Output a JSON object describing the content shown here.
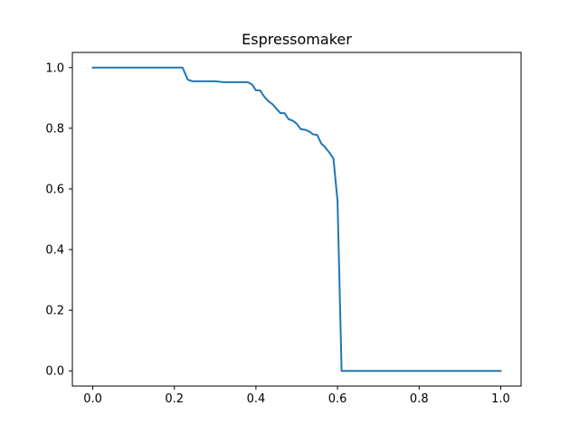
{
  "chart_data": {
    "type": "line",
    "title": "Espressomaker",
    "xlabel": "",
    "ylabel": "",
    "xlim": [
      -0.05,
      1.05
    ],
    "ylim": [
      -0.05,
      1.05
    ],
    "x_ticks": [
      "0.0",
      "0.2",
      "0.4",
      "0.6",
      "0.8",
      "1.0"
    ],
    "y_ticks": [
      "0.0",
      "0.2",
      "0.4",
      "0.6",
      "0.8",
      "1.0"
    ],
    "grid": false,
    "legend": "none",
    "series": [
      {
        "color": "#1f77b4",
        "x": [
          0.0,
          0.1,
          0.2,
          0.22,
          0.233,
          0.245,
          0.3,
          0.32,
          0.38,
          0.39,
          0.4,
          0.41,
          0.42,
          0.43,
          0.44,
          0.45,
          0.46,
          0.47,
          0.48,
          0.49,
          0.5,
          0.51,
          0.52,
          0.53,
          0.54,
          0.55,
          0.56,
          0.57,
          0.58,
          0.59,
          0.6,
          0.61,
          0.62,
          0.63,
          0.7,
          0.8,
          0.9,
          1.0
        ],
        "y": [
          1.0,
          1.0,
          1.0,
          1.0,
          0.96,
          0.955,
          0.955,
          0.952,
          0.952,
          0.945,
          0.925,
          0.925,
          0.905,
          0.89,
          0.88,
          0.865,
          0.85,
          0.85,
          0.83,
          0.825,
          0.815,
          0.797,
          0.795,
          0.79,
          0.78,
          0.778,
          0.75,
          0.737,
          0.72,
          0.7,
          0.56,
          0.0,
          0.0,
          0.0,
          0.0,
          0.0,
          0.0,
          0.0
        ]
      }
    ]
  }
}
